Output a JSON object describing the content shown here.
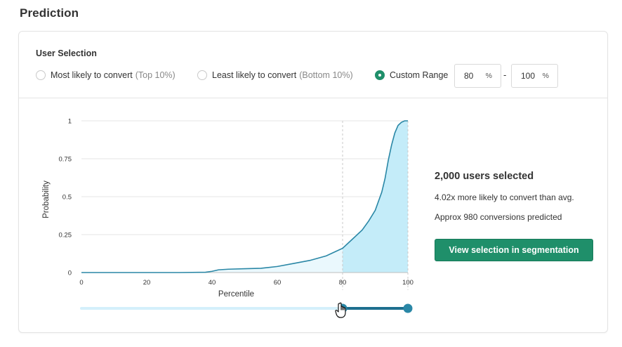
{
  "page": {
    "title": "Prediction"
  },
  "selection": {
    "label": "User Selection",
    "options": [
      {
        "label": "Most likely to convert",
        "hint": "(Top 10%)",
        "checked": false
      },
      {
        "label": "Least likely to convert",
        "hint": "(Bottom 10%)",
        "checked": false
      },
      {
        "label": "Custom Range",
        "hint": "",
        "checked": true
      }
    ],
    "range_from": "80",
    "range_to": "100",
    "percent_symbol": "%",
    "separator": "-"
  },
  "chart_data": {
    "type": "area",
    "xlabel": "Percentile",
    "ylabel": "Probability",
    "xlim": [
      0,
      100
    ],
    "ylim": [
      0,
      1
    ],
    "x_ticks": [
      "0",
      "20",
      "40",
      "60",
      "80",
      "100"
    ],
    "y_ticks": [
      "0",
      "0.25",
      "0.5",
      "0.75",
      "1"
    ],
    "grid": true,
    "highlight_range": [
      80,
      100
    ],
    "series": [
      {
        "x": [
          0,
          10,
          20,
          30,
          38,
          40,
          42,
          45,
          50,
          55,
          60,
          65,
          70,
          75,
          78,
          80,
          83,
          86,
          88,
          90,
          92,
          93,
          94,
          95,
          96,
          97,
          98,
          99,
          100
        ],
        "y": [
          0,
          0,
          0,
          0,
          0.002,
          0.008,
          0.018,
          0.022,
          0.025,
          0.028,
          0.04,
          0.06,
          0.08,
          0.11,
          0.14,
          0.16,
          0.22,
          0.28,
          0.34,
          0.41,
          0.53,
          0.62,
          0.74,
          0.84,
          0.92,
          0.97,
          0.99,
          1.0,
          1.0
        ]
      }
    ],
    "colors": {
      "line": "#2a87a6",
      "fill_selected": "#c4ecf9",
      "fill_unselected": "#eaf8fd",
      "grid": "#e6e6e6"
    }
  },
  "slider": {
    "min": 0,
    "max": 100,
    "low": 80,
    "high": 100,
    "track_color": "#d4f0fb",
    "active_color": "#1e6f8f"
  },
  "stats": {
    "users_selected": "2,000 users selected",
    "lift": "4.02x more likely to convert than avg.",
    "conversions": "Approx 980 conversions predicted"
  },
  "action": {
    "label": "View selection in segmentation"
  },
  "icons": {
    "cursor": "hand-pointer-icon"
  }
}
